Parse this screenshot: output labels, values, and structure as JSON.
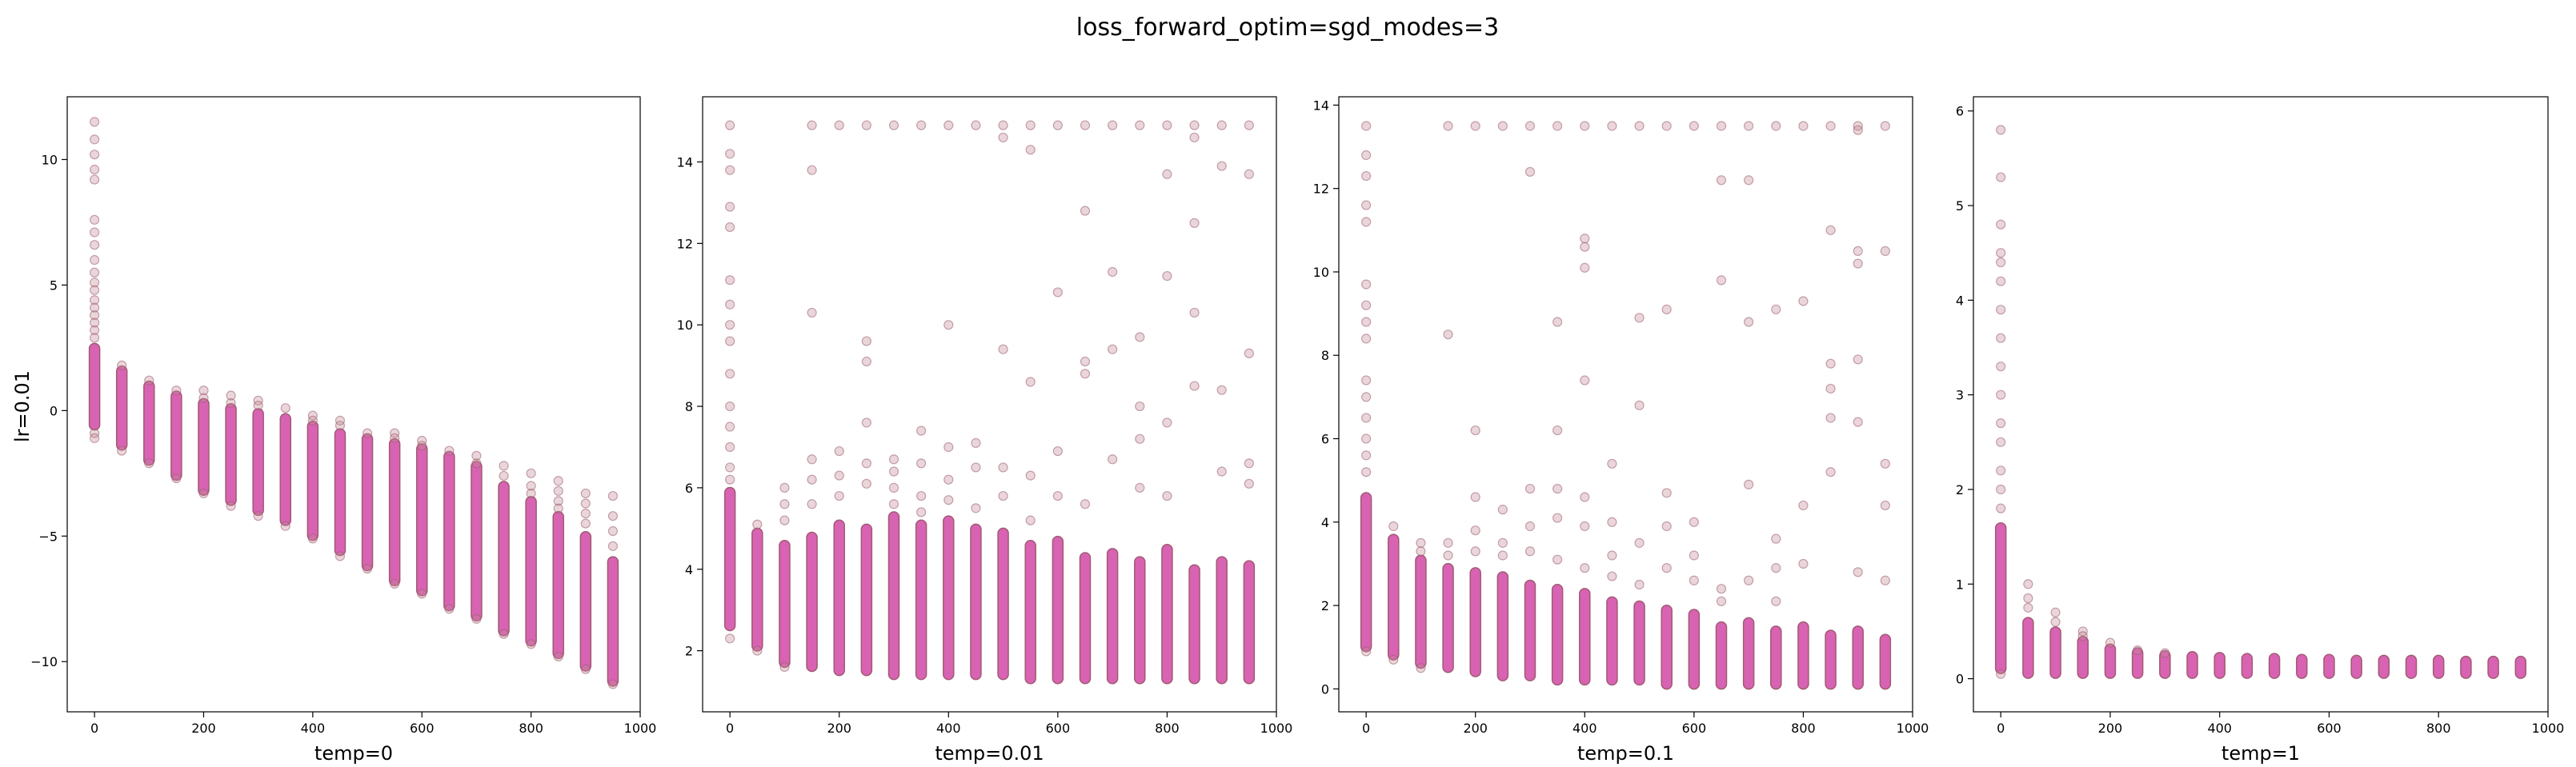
{
  "figure": {
    "title": "loss_forward_optim=sgd_modes=3",
    "row_label": "lr=0.01"
  },
  "colors": {
    "marker_fill": "#c48a95",
    "marker_edge": "#9b5f6f",
    "dense_band": "#d863b2"
  },
  "chart_data": [
    {
      "type": "scatter",
      "xlabel": "temp=0",
      "ylabel": "lr=0.01",
      "xlim": [
        -50,
        1000
      ],
      "ylim": [
        -12,
        12.5
      ],
      "xticks": [
        0,
        200,
        400,
        600,
        800,
        1000
      ],
      "yticks": [
        -10,
        -5,
        0,
        5,
        10
      ],
      "grid": false,
      "bands": [
        {
          "x": 0,
          "low": -0.6,
          "high": 2.5
        },
        {
          "x": 50,
          "low": -1.4,
          "high": 1.6
        },
        {
          "x": 100,
          "low": -2.0,
          "high": 1.0
        },
        {
          "x": 150,
          "low": -2.6,
          "high": 0.6
        },
        {
          "x": 200,
          "low": -3.2,
          "high": 0.3
        },
        {
          "x": 250,
          "low": -3.6,
          "high": 0.1
        },
        {
          "x": 300,
          "low": -4.0,
          "high": -0.1
        },
        {
          "x": 350,
          "low": -4.4,
          "high": -0.3
        },
        {
          "x": 400,
          "low": -5.0,
          "high": -0.6
        },
        {
          "x": 450,
          "low": -5.6,
          "high": -0.9
        },
        {
          "x": 500,
          "low": -6.2,
          "high": -1.1
        },
        {
          "x": 550,
          "low": -6.8,
          "high": -1.3
        },
        {
          "x": 600,
          "low": -7.2,
          "high": -1.5
        },
        {
          "x": 650,
          "low": -7.8,
          "high": -1.8
        },
        {
          "x": 700,
          "low": -8.2,
          "high": -2.2
        },
        {
          "x": 750,
          "low": -8.8,
          "high": -3.0
        },
        {
          "x": 800,
          "low": -9.2,
          "high": -3.6
        },
        {
          "x": 850,
          "low": -9.7,
          "high": -4.2
        },
        {
          "x": 900,
          "low": -10.2,
          "high": -5.0
        },
        {
          "x": 950,
          "low": -10.8,
          "high": -6.0
        }
      ],
      "outliers": [
        {
          "x": 0,
          "y": [
            11.5,
            10.8,
            10.2,
            9.6,
            9.2,
            7.6,
            7.1,
            6.6,
            6.0,
            5.5,
            5.1,
            4.8,
            4.4,
            4.1,
            3.8,
            3.5,
            3.2,
            2.9,
            -0.9,
            -1.1
          ]
        },
        {
          "x": 50,
          "y": [
            1.8,
            -1.6
          ]
        },
        {
          "x": 100,
          "y": [
            1.2,
            -2.1
          ]
        },
        {
          "x": 150,
          "y": [
            0.8,
            -2.7
          ]
        },
        {
          "x": 200,
          "y": [
            0.8,
            0.5,
            -3.3
          ]
        },
        {
          "x": 250,
          "y": [
            0.6,
            0.3,
            -3.8
          ]
        },
        {
          "x": 300,
          "y": [
            0.4,
            0.2,
            -4.2
          ]
        },
        {
          "x": 350,
          "y": [
            0.1,
            -4.6
          ]
        },
        {
          "x": 400,
          "y": [
            -0.2,
            -0.4,
            -5.1
          ]
        },
        {
          "x": 450,
          "y": [
            -0.4,
            -0.6,
            -5.8
          ]
        },
        {
          "x": 500,
          "y": [
            -0.9,
            -6.3
          ]
        },
        {
          "x": 550,
          "y": [
            -0.9,
            -1.1,
            -6.9
          ]
        },
        {
          "x": 600,
          "y": [
            -1.2,
            -1.4,
            -7.3
          ]
        },
        {
          "x": 650,
          "y": [
            -1.6,
            -7.9
          ]
        },
        {
          "x": 700,
          "y": [
            -1.8,
            -2.1,
            -8.3
          ]
        },
        {
          "x": 750,
          "y": [
            -2.2,
            -2.6,
            -8.9
          ]
        },
        {
          "x": 800,
          "y": [
            -2.5,
            -3.0,
            -3.3,
            -9.3
          ]
        },
        {
          "x": 850,
          "y": [
            -2.8,
            -3.2,
            -3.6,
            -3.9,
            -9.8
          ]
        },
        {
          "x": 900,
          "y": [
            -3.3,
            -3.7,
            -4.1,
            -4.5,
            -10.3
          ]
        },
        {
          "x": 950,
          "y": [
            -3.4,
            -4.2,
            -4.8,
            -5.4,
            -10.9
          ]
        }
      ]
    },
    {
      "type": "scatter",
      "xlabel": "temp=0.01",
      "ylabel": "",
      "xlim": [
        -50,
        1000
      ],
      "ylim": [
        0.5,
        15.6
      ],
      "xticks": [
        0,
        200,
        400,
        600,
        800,
        1000
      ],
      "yticks": [
        2,
        4,
        6,
        8,
        10,
        12,
        14
      ],
      "grid": false,
      "bands": [
        {
          "x": 0,
          "low": 2.6,
          "high": 5.9
        },
        {
          "x": 50,
          "low": 2.1,
          "high": 4.9
        },
        {
          "x": 100,
          "low": 1.7,
          "high": 4.6
        },
        {
          "x": 150,
          "low": 1.6,
          "high": 4.8
        },
        {
          "x": 200,
          "low": 1.5,
          "high": 5.1
        },
        {
          "x": 250,
          "low": 1.5,
          "high": 5.0
        },
        {
          "x": 300,
          "low": 1.4,
          "high": 5.3
        },
        {
          "x": 350,
          "low": 1.4,
          "high": 5.1
        },
        {
          "x": 400,
          "low": 1.4,
          "high": 5.2
        },
        {
          "x": 450,
          "low": 1.4,
          "high": 5.0
        },
        {
          "x": 500,
          "low": 1.4,
          "high": 4.9
        },
        {
          "x": 550,
          "low": 1.3,
          "high": 4.6
        },
        {
          "x": 600,
          "low": 1.3,
          "high": 4.7
        },
        {
          "x": 650,
          "low": 1.3,
          "high": 4.3
        },
        {
          "x": 700,
          "low": 1.3,
          "high": 4.4
        },
        {
          "x": 750,
          "low": 1.3,
          "high": 4.2
        },
        {
          "x": 800,
          "low": 1.3,
          "high": 4.5
        },
        {
          "x": 850,
          "low": 1.3,
          "high": 4.0
        },
        {
          "x": 900,
          "low": 1.3,
          "high": 4.2
        },
        {
          "x": 950,
          "low": 1.3,
          "high": 4.1
        }
      ],
      "outliers": [
        {
          "x": 0,
          "y": [
            14.9,
            14.2,
            13.8,
            12.9,
            12.4,
            11.1,
            10.5,
            10.0,
            9.6,
            8.8,
            8.0,
            7.5,
            7.0,
            6.5,
            6.2,
            2.3
          ]
        },
        {
          "x": 50,
          "y": [
            5.1,
            2.0
          ]
        },
        {
          "x": 100,
          "y": [
            6.0,
            5.6,
            5.2,
            1.6
          ]
        },
        {
          "x": 150,
          "y": [
            14.9,
            13.8,
            10.3,
            6.7,
            6.2,
            5.6
          ]
        },
        {
          "x": 200,
          "y": [
            14.9,
            6.9,
            6.3,
            5.8
          ]
        },
        {
          "x": 250,
          "y": [
            14.9,
            9.6,
            9.1,
            7.6,
            6.6,
            6.1
          ]
        },
        {
          "x": 300,
          "y": [
            14.9,
            6.7,
            6.4,
            6.0,
            5.6
          ]
        },
        {
          "x": 350,
          "y": [
            14.9,
            7.4,
            6.6,
            5.8,
            5.4
          ]
        },
        {
          "x": 400,
          "y": [
            14.9,
            10.0,
            7.0,
            6.2,
            5.7
          ]
        },
        {
          "x": 450,
          "y": [
            14.9,
            7.1,
            6.5,
            5.5
          ]
        },
        {
          "x": 500,
          "y": [
            14.9,
            14.6,
            9.4,
            6.5,
            5.8
          ]
        },
        {
          "x": 550,
          "y": [
            14.9,
            14.3,
            8.6,
            6.3,
            5.2
          ]
        },
        {
          "x": 600,
          "y": [
            14.9,
            10.8,
            6.9,
            5.8
          ]
        },
        {
          "x": 650,
          "y": [
            14.9,
            12.8,
            9.1,
            8.8,
            5.6
          ]
        },
        {
          "x": 700,
          "y": [
            14.9,
            11.3,
            9.4,
            6.7
          ]
        },
        {
          "x": 750,
          "y": [
            14.9,
            9.7,
            8.0,
            7.2,
            6.0
          ]
        },
        {
          "x": 800,
          "y": [
            14.9,
            13.7,
            11.2,
            7.6,
            5.8
          ]
        },
        {
          "x": 850,
          "y": [
            14.9,
            14.6,
            12.5,
            10.3,
            8.5
          ]
        },
        {
          "x": 900,
          "y": [
            14.9,
            13.9,
            8.4,
            6.4
          ]
        },
        {
          "x": 950,
          "y": [
            14.9,
            13.7,
            9.3,
            6.6,
            6.1
          ]
        }
      ]
    },
    {
      "type": "scatter",
      "xlabel": "temp=0.1",
      "ylabel": "",
      "xlim": [
        -50,
        1000
      ],
      "ylim": [
        -0.55,
        14.2
      ],
      "xticks": [
        0,
        200,
        400,
        600,
        800,
        1000
      ],
      "yticks": [
        0,
        2,
        4,
        6,
        8,
        10,
        12,
        14
      ],
      "grid": false,
      "bands": [
        {
          "x": 0,
          "low": 1.0,
          "high": 4.6
        },
        {
          "x": 50,
          "low": 0.8,
          "high": 3.6
        },
        {
          "x": 100,
          "low": 0.6,
          "high": 3.1
        },
        {
          "x": 150,
          "low": 0.5,
          "high": 2.9
        },
        {
          "x": 200,
          "low": 0.4,
          "high": 2.8
        },
        {
          "x": 250,
          "low": 0.3,
          "high": 2.7
        },
        {
          "x": 300,
          "low": 0.3,
          "high": 2.5
        },
        {
          "x": 350,
          "low": 0.2,
          "high": 2.4
        },
        {
          "x": 400,
          "low": 0.2,
          "high": 2.3
        },
        {
          "x": 450,
          "low": 0.2,
          "high": 2.1
        },
        {
          "x": 500,
          "low": 0.2,
          "high": 2.0
        },
        {
          "x": 550,
          "low": 0.1,
          "high": 1.9
        },
        {
          "x": 600,
          "low": 0.1,
          "high": 1.8
        },
        {
          "x": 650,
          "low": 0.1,
          "high": 1.5
        },
        {
          "x": 700,
          "low": 0.1,
          "high": 1.6
        },
        {
          "x": 750,
          "low": 0.1,
          "high": 1.4
        },
        {
          "x": 800,
          "low": 0.1,
          "high": 1.5
        },
        {
          "x": 850,
          "low": 0.1,
          "high": 1.3
        },
        {
          "x": 900,
          "low": 0.1,
          "high": 1.4
        },
        {
          "x": 950,
          "low": 0.1,
          "high": 1.2
        }
      ],
      "outliers": [
        {
          "x": 0,
          "y": [
            13.5,
            12.8,
            12.3,
            11.6,
            11.2,
            9.7,
            9.2,
            8.8,
            8.4,
            7.4,
            7.0,
            6.5,
            6.0,
            5.6,
            5.2,
            0.9
          ]
        },
        {
          "x": 50,
          "y": [
            3.9,
            0.7
          ]
        },
        {
          "x": 100,
          "y": [
            3.5,
            3.3,
            0.5
          ]
        },
        {
          "x": 150,
          "y": [
            13.5,
            8.5,
            3.5,
            3.2
          ]
        },
        {
          "x": 200,
          "y": [
            13.5,
            6.2,
            4.6,
            3.8,
            3.3
          ]
        },
        {
          "x": 250,
          "y": [
            13.5,
            4.3,
            3.5,
            3.2
          ]
        },
        {
          "x": 300,
          "y": [
            13.5,
            12.4,
            4.8,
            3.9,
            3.3
          ]
        },
        {
          "x": 350,
          "y": [
            13.5,
            8.8,
            6.2,
            4.8,
            4.1,
            3.1
          ]
        },
        {
          "x": 400,
          "y": [
            13.5,
            10.8,
            10.6,
            10.1,
            7.4,
            4.6,
            3.9,
            2.9
          ]
        },
        {
          "x": 450,
          "y": [
            13.5,
            5.4,
            4.0,
            3.2,
            2.7
          ]
        },
        {
          "x": 500,
          "y": [
            13.5,
            8.9,
            6.8,
            3.5,
            2.5
          ]
        },
        {
          "x": 550,
          "y": [
            13.5,
            9.1,
            4.7,
            3.9,
            2.9
          ]
        },
        {
          "x": 600,
          "y": [
            13.5,
            4.0,
            3.2,
            2.6
          ]
        },
        {
          "x": 650,
          "y": [
            13.5,
            12.2,
            9.8,
            2.4,
            2.1
          ]
        },
        {
          "x": 700,
          "y": [
            13.5,
            12.2,
            8.8,
            4.9,
            2.6
          ]
        },
        {
          "x": 750,
          "y": [
            13.5,
            9.1,
            3.6,
            2.9,
            2.1
          ]
        },
        {
          "x": 800,
          "y": [
            13.5,
            9.3,
            4.4,
            3.0
          ]
        },
        {
          "x": 850,
          "y": [
            13.5,
            11.0,
            7.8,
            7.2,
            6.5,
            5.2
          ]
        },
        {
          "x": 900,
          "y": [
            13.5,
            13.4,
            10.5,
            10.2,
            7.9,
            6.4,
            2.8
          ]
        },
        {
          "x": 950,
          "y": [
            13.5,
            10.5,
            5.4,
            4.4,
            2.6
          ]
        }
      ]
    },
    {
      "type": "scatter",
      "xlabel": "temp=1",
      "ylabel": "",
      "xlim": [
        -50,
        1000
      ],
      "ylim": [
        -0.35,
        6.15
      ],
      "xticks": [
        0,
        200,
        400,
        600,
        800,
        1000
      ],
      "yticks": [
        0,
        1,
        2,
        3,
        4,
        5,
        6
      ],
      "grid": false,
      "bands": [
        {
          "x": 0,
          "low": 0.1,
          "high": 1.6
        },
        {
          "x": 50,
          "low": 0.05,
          "high": 0.6
        },
        {
          "x": 100,
          "low": 0.05,
          "high": 0.5
        },
        {
          "x": 150,
          "low": 0.05,
          "high": 0.4
        },
        {
          "x": 200,
          "low": 0.05,
          "high": 0.32
        },
        {
          "x": 250,
          "low": 0.05,
          "high": 0.28
        },
        {
          "x": 300,
          "low": 0.05,
          "high": 0.25
        },
        {
          "x": 350,
          "low": 0.05,
          "high": 0.24
        },
        {
          "x": 400,
          "low": 0.05,
          "high": 0.23
        },
        {
          "x": 450,
          "low": 0.05,
          "high": 0.22
        },
        {
          "x": 500,
          "low": 0.05,
          "high": 0.22
        },
        {
          "x": 550,
          "low": 0.05,
          "high": 0.21
        },
        {
          "x": 600,
          "low": 0.05,
          "high": 0.21
        },
        {
          "x": 650,
          "low": 0.05,
          "high": 0.2
        },
        {
          "x": 700,
          "low": 0.05,
          "high": 0.2
        },
        {
          "x": 750,
          "low": 0.05,
          "high": 0.2
        },
        {
          "x": 800,
          "low": 0.05,
          "high": 0.2
        },
        {
          "x": 850,
          "low": 0.05,
          "high": 0.19
        },
        {
          "x": 900,
          "low": 0.05,
          "high": 0.19
        },
        {
          "x": 950,
          "low": 0.05,
          "high": 0.19
        }
      ],
      "outliers": [
        {
          "x": 0,
          "y": [
            5.8,
            5.3,
            4.8,
            4.5,
            4.4,
            4.2,
            3.9,
            3.6,
            3.3,
            3.0,
            2.7,
            2.5,
            2.2,
            2.0,
            1.8,
            0.05
          ]
        },
        {
          "x": 50,
          "y": [
            1.0,
            0.85,
            0.75
          ]
        },
        {
          "x": 100,
          "y": [
            0.7,
            0.6
          ]
        },
        {
          "x": 150,
          "y": [
            0.5,
            0.45
          ]
        },
        {
          "x": 200,
          "y": [
            0.38
          ]
        },
        {
          "x": 250,
          "y": [
            0.3
          ]
        },
        {
          "x": 300,
          "y": [
            0.27
          ]
        }
      ]
    }
  ]
}
